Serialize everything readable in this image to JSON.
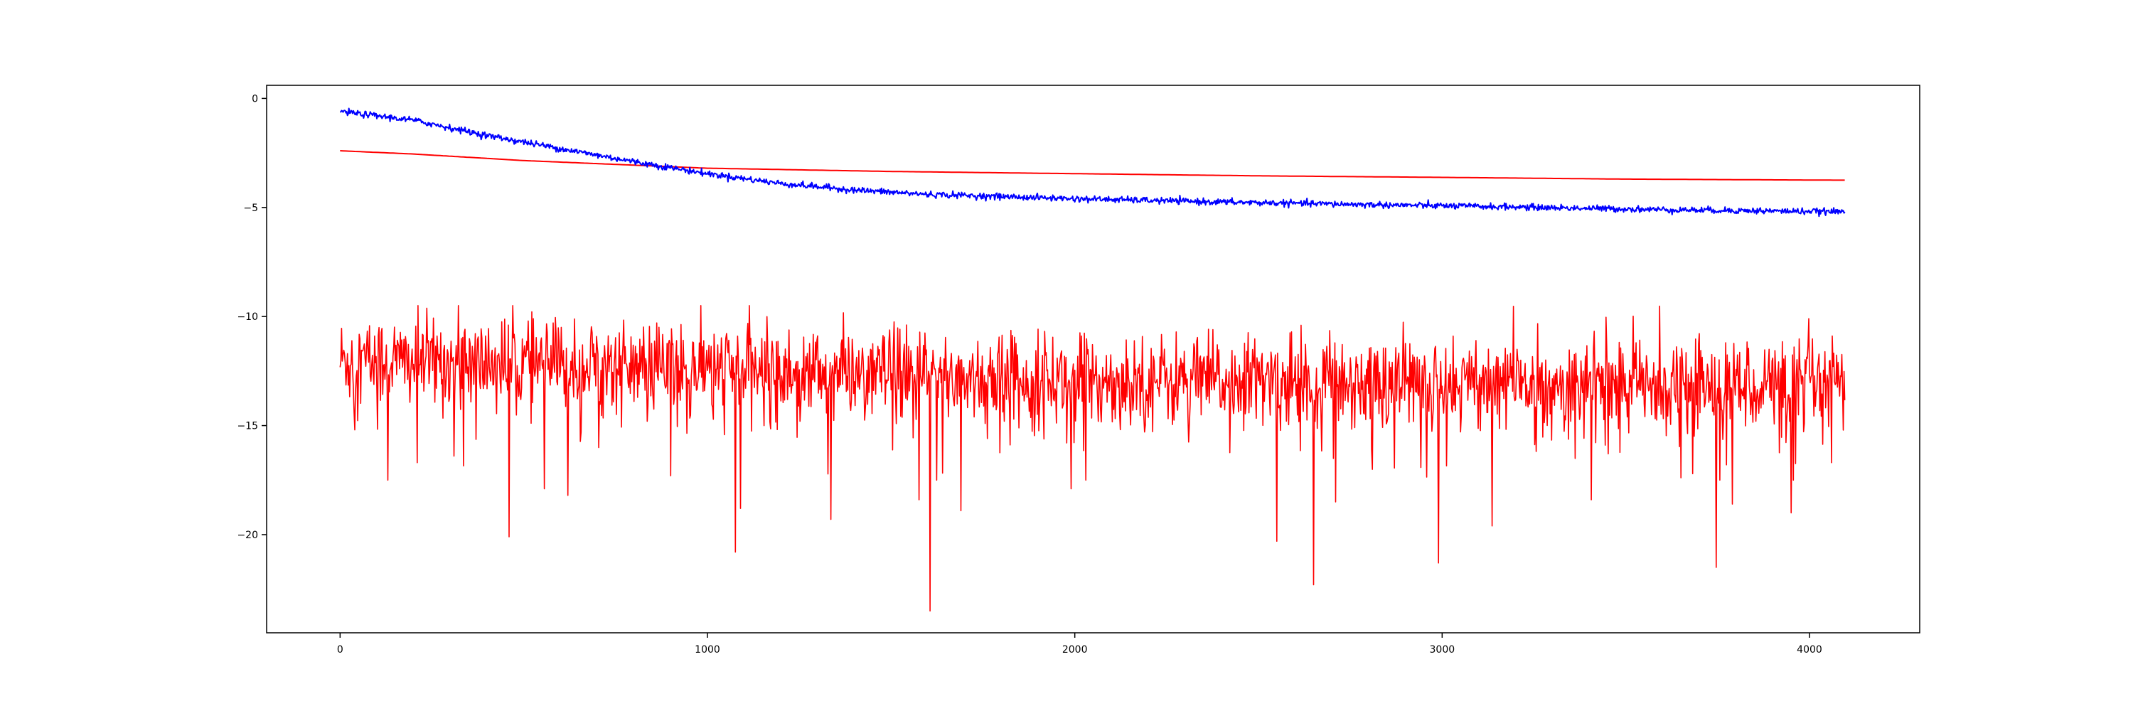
{
  "chart_data": {
    "type": "line",
    "title": "",
    "xlabel": "",
    "ylabel": "",
    "xlim": [
      -200,
      4300
    ],
    "ylim": [
      -24.5,
      0.6
    ],
    "grid": false,
    "legend": "none",
    "x_ticks": [
      0,
      1000,
      2000,
      3000,
      4000
    ],
    "x_tick_labels": [
      "0",
      "1000",
      "2000",
      "3000",
      "4000"
    ],
    "y_ticks": [
      0,
      -5,
      -10,
      -15,
      -20
    ],
    "y_tick_labels": [
      "0",
      "−5",
      "−10",
      "−15",
      "−20"
    ],
    "series": [
      {
        "color": "#0000ff",
        "style": "noisy",
        "noise_amplitude": 0.12,
        "x": [
          0,
          200,
          400,
          600,
          800,
          1000,
          1200,
          1400,
          1600,
          1800,
          2000,
          2400,
          2800,
          3200,
          3600,
          4096
        ],
        "y": [
          -0.6,
          -1.0,
          -1.7,
          -2.3,
          -2.9,
          -3.45,
          -3.9,
          -4.2,
          -4.4,
          -4.5,
          -4.6,
          -4.75,
          -4.87,
          -4.98,
          -5.1,
          -5.2
        ]
      },
      {
        "color": "#ff0000",
        "style": "smooth",
        "x": [
          0,
          200,
          500,
          1000,
          1500,
          2000,
          2500,
          3000,
          3500,
          4096
        ],
        "y": [
          -2.4,
          -2.55,
          -2.85,
          -3.2,
          -3.35,
          -3.45,
          -3.55,
          -3.62,
          -3.7,
          -3.75
        ]
      },
      {
        "color": "#ff0000",
        "style": "spiky",
        "mean_x": [
          0,
          500,
          1000,
          1500,
          2000,
          2500,
          3000,
          3500,
          4096
        ],
        "mean_y": [
          -12.0,
          -12.2,
          -12.4,
          -12.7,
          -12.9,
          -13.0,
          -13.0,
          -13.1,
          -13.1
        ],
        "band_min": -15.0,
        "band_max": -9.5,
        "spikes": [
          {
            "x": 130,
            "y": -17.5
          },
          {
            "x": 210,
            "y": -16.7
          },
          {
            "x": 310,
            "y": -16.4
          },
          {
            "x": 460,
            "y": -20.1
          },
          {
            "x": 555,
            "y": -17.9
          },
          {
            "x": 620,
            "y": -18.2
          },
          {
            "x": 900,
            "y": -17.3
          },
          {
            "x": 1075,
            "y": -20.8
          },
          {
            "x": 1090,
            "y": -18.8
          },
          {
            "x": 1335,
            "y": -19.3
          },
          {
            "x": 1575,
            "y": -18.4
          },
          {
            "x": 1605,
            "y": -23.5
          },
          {
            "x": 1690,
            "y": -18.9
          },
          {
            "x": 1990,
            "y": -17.9
          },
          {
            "x": 2550,
            "y": -20.3
          },
          {
            "x": 2650,
            "y": -22.3
          },
          {
            "x": 2710,
            "y": -18.5
          },
          {
            "x": 2990,
            "y": -21.3
          },
          {
            "x": 3135,
            "y": -19.6
          },
          {
            "x": 3405,
            "y": -18.4
          },
          {
            "x": 3745,
            "y": -21.5
          },
          {
            "x": 3790,
            "y": -18.6
          },
          {
            "x": 3950,
            "y": -19.0
          },
          {
            "x": 4060,
            "y": -16.7
          }
        ],
        "x_max": 4096
      }
    ]
  }
}
